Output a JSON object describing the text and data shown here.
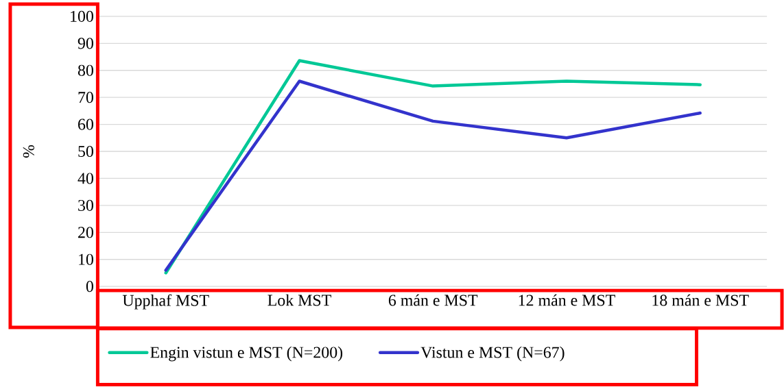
{
  "chart_data": {
    "type": "line",
    "ylabel": "%",
    "categories": [
      "Upphaf MST",
      "Lok MST",
      "6 mán e MST",
      "12 mán e MST",
      "18 mán e MST"
    ],
    "series": [
      {
        "name": "Engin vistun e MST (N=200)",
        "color": "#00c896",
        "values": [
          5,
          83.6,
          74.2,
          76,
          74.7
        ]
      },
      {
        "name": "Vistun e MST (N=67)",
        "color": "#3333cc",
        "values": [
          6,
          76,
          61.2,
          55,
          64.2
        ]
      }
    ],
    "ylim": [
      0,
      100
    ],
    "yticks": [
      0,
      10,
      20,
      30,
      40,
      50,
      60,
      70,
      80,
      90,
      100
    ],
    "grid": "y",
    "legend": "bottom",
    "marker": "none",
    "line_style": "solid"
  }
}
